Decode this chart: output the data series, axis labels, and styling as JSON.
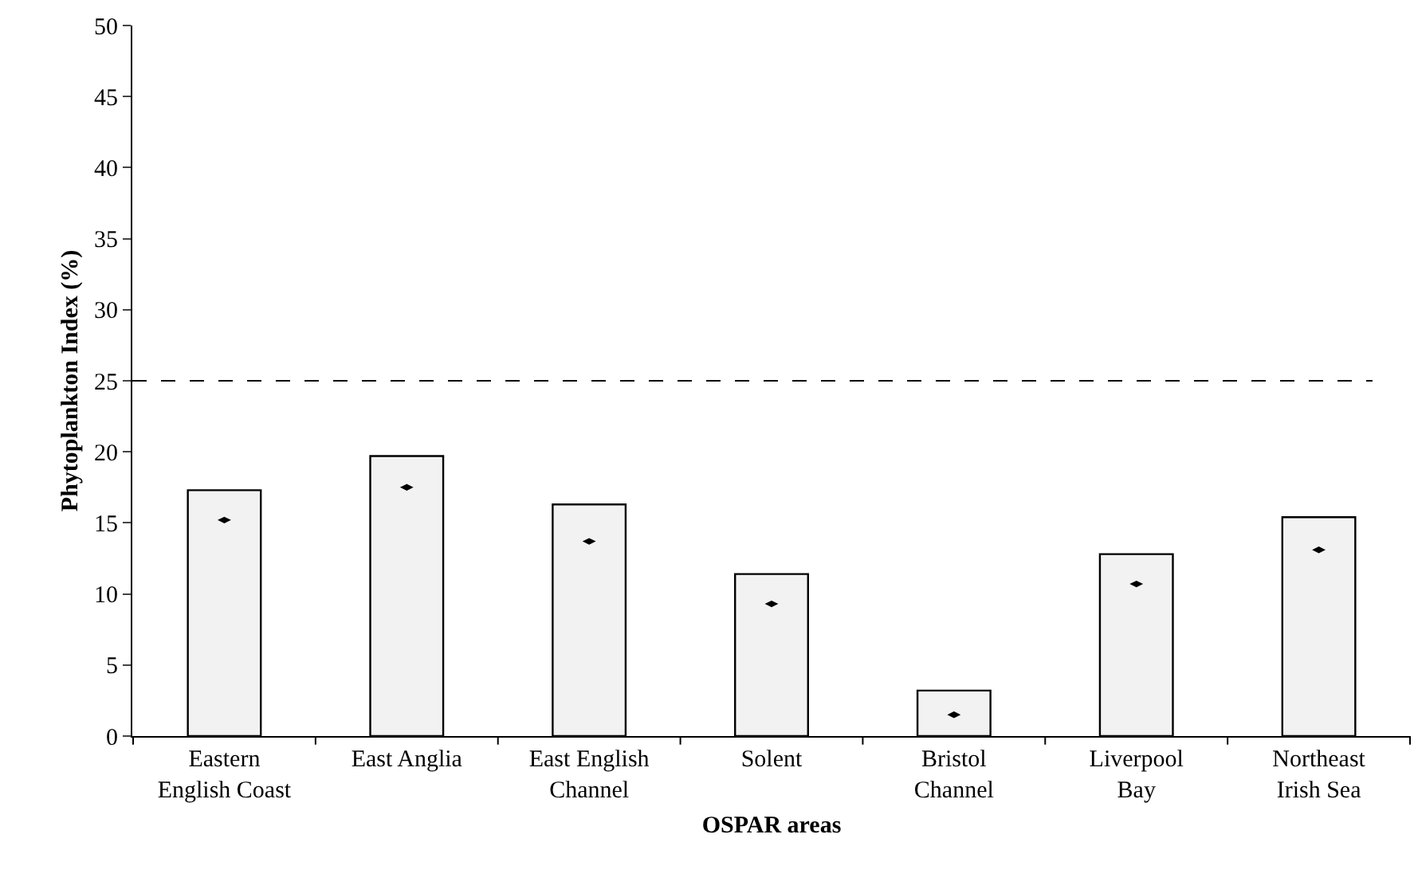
{
  "chart_data": {
    "type": "bar",
    "xlabel": "OSPAR areas",
    "ylabel": "Phytoplankton Index (%)",
    "categories": [
      "Eastern English Coast",
      "East Anglia",
      "East English Channel",
      "Solent",
      "Bristol Channel",
      "Liverpool Bay",
      "Northeast Irish Sea"
    ],
    "series": [
      {
        "type": "bar",
        "color": "#f2f2f2",
        "values": [
          17.3,
          19.7,
          16.3,
          11.4,
          3.2,
          12.8,
          15.4
        ]
      },
      {
        "type": "scatter",
        "color": "#000000",
        "x": [
          "Eastern English Coast",
          "East Anglia",
          "East English Channel",
          "Solent",
          "Bristol Channel",
          "Liverpool Bay",
          "Northeast Irish Sea"
        ],
        "values": [
          15.2,
          17.5,
          13.7,
          9.3,
          1.5,
          10.7,
          13.1
        ]
      }
    ],
    "ylim": [
      0,
      50
    ],
    "yticks": [
      0,
      5,
      10,
      15,
      20,
      25,
      30,
      35,
      40,
      45,
      50
    ],
    "ref_lines": [
      {
        "axis": "y",
        "value": 25,
        "color": "#000000",
        "line_style": "dashed"
      }
    ]
  }
}
